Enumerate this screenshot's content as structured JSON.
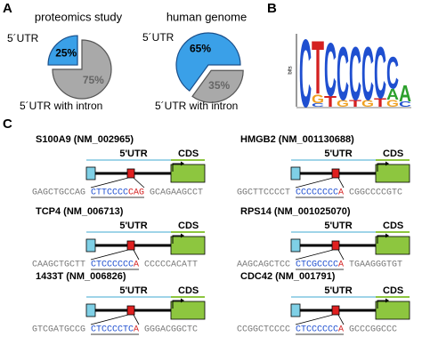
{
  "panel_labels": [
    "A",
    "B",
    "C"
  ],
  "chart_data": [
    {
      "type": "pie",
      "title": "proteomics study",
      "categories": [
        "5´UTR",
        "5´UTR with intron"
      ],
      "values": [
        25,
        75
      ],
      "value_labels": [
        "25%",
        "75%"
      ],
      "colors": [
        "#3aa0e8",
        "#a9a9a9"
      ]
    },
    {
      "type": "pie",
      "title": "human genome",
      "categories": [
        "5´UTR",
        "5´UTR with intron"
      ],
      "values": [
        65,
        35
      ],
      "value_labels": [
        "65%",
        "35%"
      ],
      "colors": [
        "#3aa0e8",
        "#a9a9a9"
      ]
    }
  ],
  "logo": {
    "axis_label": "bits",
    "ylim": [
      0,
      2
    ],
    "letter_colors": {
      "A": "#2ca02c",
      "C": "#1f4fd0",
      "G": "#f0a020",
      "T": "#d42020"
    },
    "columns": [
      {
        "letters": [
          "C"
        ],
        "heights": [
          1.9
        ]
      },
      {
        "letters": [
          "T",
          "G",
          "C"
        ],
        "heights": [
          1.5,
          0.25,
          0.1
        ]
      },
      {
        "letters": [
          "C",
          "T"
        ],
        "heights": [
          1.5,
          0.3
        ]
      },
      {
        "letters": [
          "C",
          "G"
        ],
        "heights": [
          1.5,
          0.2
        ]
      },
      {
        "letters": [
          "C",
          "T"
        ],
        "heights": [
          1.5,
          0.2
        ]
      },
      {
        "letters": [
          "C",
          "G"
        ],
        "heights": [
          1.5,
          0.2
        ]
      },
      {
        "letters": [
          "C",
          "T"
        ],
        "heights": [
          1.45,
          0.25
        ]
      },
      {
        "letters": [
          "C",
          "A",
          "G"
        ],
        "heights": [
          0.9,
          0.3,
          0.2
        ]
      },
      {
        "letters": [
          "A",
          "C"
        ],
        "heights": [
          0.45,
          0.15
        ]
      }
    ]
  },
  "genes": [
    {
      "name": "S100A9 (NM_002965)",
      "utr_label": "5'UTR",
      "cds_label": "CDS",
      "sequence": [
        "GAGCTGCCAG",
        "CTTCCCC",
        "CAG",
        "GCAGAAGCCT"
      ]
    },
    {
      "name": "HMGB2 (NM_001130688)",
      "utr_label": "5'UTR",
      "cds_label": "CDS",
      "sequence": [
        "GGCTTCCCCT",
        "CCCCCCCC",
        "A",
        "CGGCCCCGTC"
      ]
    },
    {
      "name": "TCP4 (NM_006713)",
      "utr_label": "5'UTR",
      "cds_label": "CDS",
      "sequence": [
        "CAAGCTGCTT",
        "CTCCCCCC",
        "A",
        "CCCCCACATT"
      ]
    },
    {
      "name": "RPS14 (NM_001025070)",
      "utr_label": "5'UTR",
      "cds_label": "CDS",
      "sequence": [
        "AAGCAGCTCC",
        "CTCGCCCC",
        "A",
        "TGAAGGGTGT"
      ]
    },
    {
      "name": "1433T (NM_006826)",
      "utr_label": "5'UTR",
      "cds_label": "CDS",
      "sequence": [
        "GTCGATGCCG",
        "CTCCCCTC",
        "A",
        "GGGACGGCTC"
      ]
    },
    {
      "name": "CDC42 (NM_001791)",
      "utr_label": "5'UTR",
      "cds_label": "CDS",
      "sequence": [
        "CCGGCTCCCC",
        "CTCCCCCC",
        "A",
        "GCCCGGCCC"
      ]
    }
  ]
}
